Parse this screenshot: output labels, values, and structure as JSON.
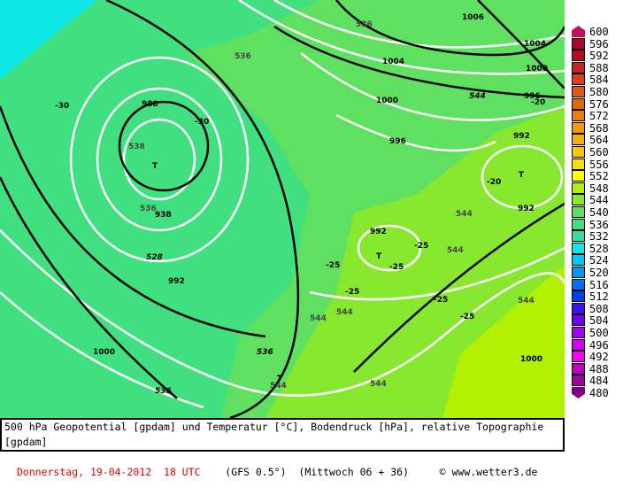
{
  "caption": {
    "line1": "500 hPa Geopotential [gpdam] und Temperatur [°C], Bodendruck [hPa], relative Topographie [gpdam]",
    "date": "Donnerstag, 19-04-2012  18 UTC",
    "model": "(GFS 0.5°)",
    "run": "(Mittwoch 06 + 36)",
    "copyright": "© www.wetter3.de"
  },
  "legend": [
    {
      "v": "600",
      "c": "#c0105a"
    },
    {
      "v": "596",
      "c": "#b00030"
    },
    {
      "v": "592",
      "c": "#b01020"
    },
    {
      "v": "588",
      "c": "#c02820"
    },
    {
      "v": "584",
      "c": "#d84020"
    },
    {
      "v": "580",
      "c": "#e05818"
    },
    {
      "v": "576",
      "c": "#e06800"
    },
    {
      "v": "572",
      "c": "#e88000"
    },
    {
      "v": "568",
      "c": "#f89800"
    },
    {
      "v": "564",
      "c": "#f8b000"
    },
    {
      "v": "560",
      "c": "#f8c800"
    },
    {
      "v": "556",
      "c": "#f8e000"
    },
    {
      "v": "552",
      "c": "#ffff00"
    },
    {
      "v": "548",
      "c": "#b0f000"
    },
    {
      "v": "544",
      "c": "#88e830"
    },
    {
      "v": "540",
      "c": "#60e060"
    },
    {
      "v": "536",
      "c": "#40e080"
    },
    {
      "v": "532",
      "c": "#30e0a0"
    },
    {
      "v": "528",
      "c": "#10e8e8"
    },
    {
      "v": "524",
      "c": "#00c8f8"
    },
    {
      "v": "520",
      "c": "#0098f8"
    },
    {
      "v": "516",
      "c": "#0070f8"
    },
    {
      "v": "512",
      "c": "#0040f0"
    },
    {
      "v": "508",
      "c": "#4010f8"
    },
    {
      "v": "504",
      "c": "#7000f8"
    },
    {
      "v": "500",
      "c": "#a000f8"
    },
    {
      "v": "496",
      "c": "#d000f8"
    },
    {
      "v": "492",
      "c": "#f800f8"
    },
    {
      "v": "488",
      "c": "#c000c0"
    },
    {
      "v": "484",
      "c": "#a000a0"
    },
    {
      "v": "480",
      "c": "#800080"
    }
  ],
  "labels": {
    "pressure": [
      "988",
      "938",
      "992",
      "1000",
      "1004",
      "1000",
      "996",
      "1006",
      "1004",
      "1000",
      "996",
      "992",
      "992",
      "992",
      "1000"
    ],
    "geopotential": [
      "528",
      "536",
      "536",
      "544",
      "536"
    ],
    "topo": [
      "536",
      "538",
      "536",
      "544",
      "544",
      "544",
      "544",
      "544",
      "544",
      "544",
      "536"
    ],
    "temperature": [
      "-30",
      "-30",
      "-20",
      "-25",
      "-25",
      "-25",
      "-25",
      "-25",
      "-25",
      "-20"
    ],
    "lows": [
      "T",
      "T",
      "T",
      "T"
    ]
  }
}
